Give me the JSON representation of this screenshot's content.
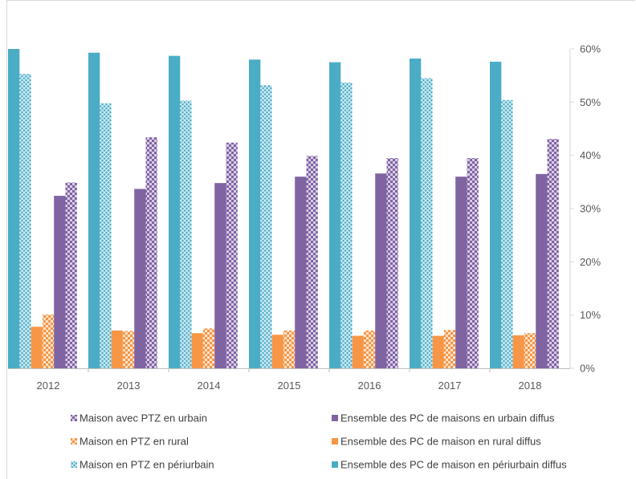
{
  "chart_data": {
    "type": "bar",
    "categories": [
      "2012",
      "2013",
      "2014",
      "2015",
      "2016",
      "2017",
      "2018"
    ],
    "yticks": [
      "0%",
      "10%",
      "20%",
      "30%",
      "40%",
      "50%",
      "60%"
    ],
    "ylim": [
      0,
      60
    ],
    "y_axis_position": "right",
    "grid": false,
    "legend_position": "bottom",
    "series": [
      {
        "name": "Ensemble des PC de maison en périurbain diffus",
        "key": "peri_pc",
        "color": "#4bacc6",
        "pattern": "solid",
        "values": [
          60,
          59.3,
          58.7,
          58,
          57.5,
          58.2,
          57.6
        ]
      },
      {
        "name": "Maison en PTZ en périurbain",
        "key": "peri_ptz",
        "color": "#4bacc6",
        "pattern": "cross",
        "values": [
          55.3,
          49.8,
          50.3,
          53.2,
          53.7,
          54.5,
          50.4
        ]
      },
      {
        "name": "Ensemble des PC de maison en rural diffus",
        "key": "rural_pc",
        "color": "#f79646",
        "pattern": "solid",
        "values": [
          7.8,
          7.1,
          6.6,
          6.3,
          6.1,
          6.1,
          6.2
        ]
      },
      {
        "name": "Maison en PTZ en rural",
        "key": "rural_ptz",
        "color": "#f79646",
        "pattern": "check",
        "values": [
          10.1,
          7.0,
          7.5,
          7.1,
          7.1,
          7.2,
          6.6
        ]
      },
      {
        "name": "Ensemble des PC de maisons en urbain diffus",
        "key": "urb_pc",
        "color": "#8064a2",
        "pattern": "solid",
        "values": [
          32.4,
          33.7,
          34.8,
          36.0,
          36.6,
          36.0,
          36.5
        ]
      },
      {
        "name": "Maison avec PTZ en urbain",
        "key": "urb_ptz",
        "color": "#8064a2",
        "pattern": "check",
        "values": [
          34.9,
          43.4,
          42.4,
          39.9,
          39.5,
          39.5,
          43.1
        ]
      }
    ],
    "legend": [
      {
        "key": "urb_ptz",
        "label": "Maison avec PTZ en urbain"
      },
      {
        "key": "urb_pc",
        "label": "Ensemble des PC de maisons en urbain diffus"
      },
      {
        "key": "rural_ptz",
        "label": "Maison en PTZ en rural"
      },
      {
        "key": "rural_pc",
        "label": "Ensemble des PC de maison en rural diffus"
      },
      {
        "key": "peri_ptz",
        "label": "Maison en PTZ en périurbain"
      },
      {
        "key": "peri_pc",
        "label": "Ensemble des PC de maison en périurbain diffus"
      }
    ]
  }
}
